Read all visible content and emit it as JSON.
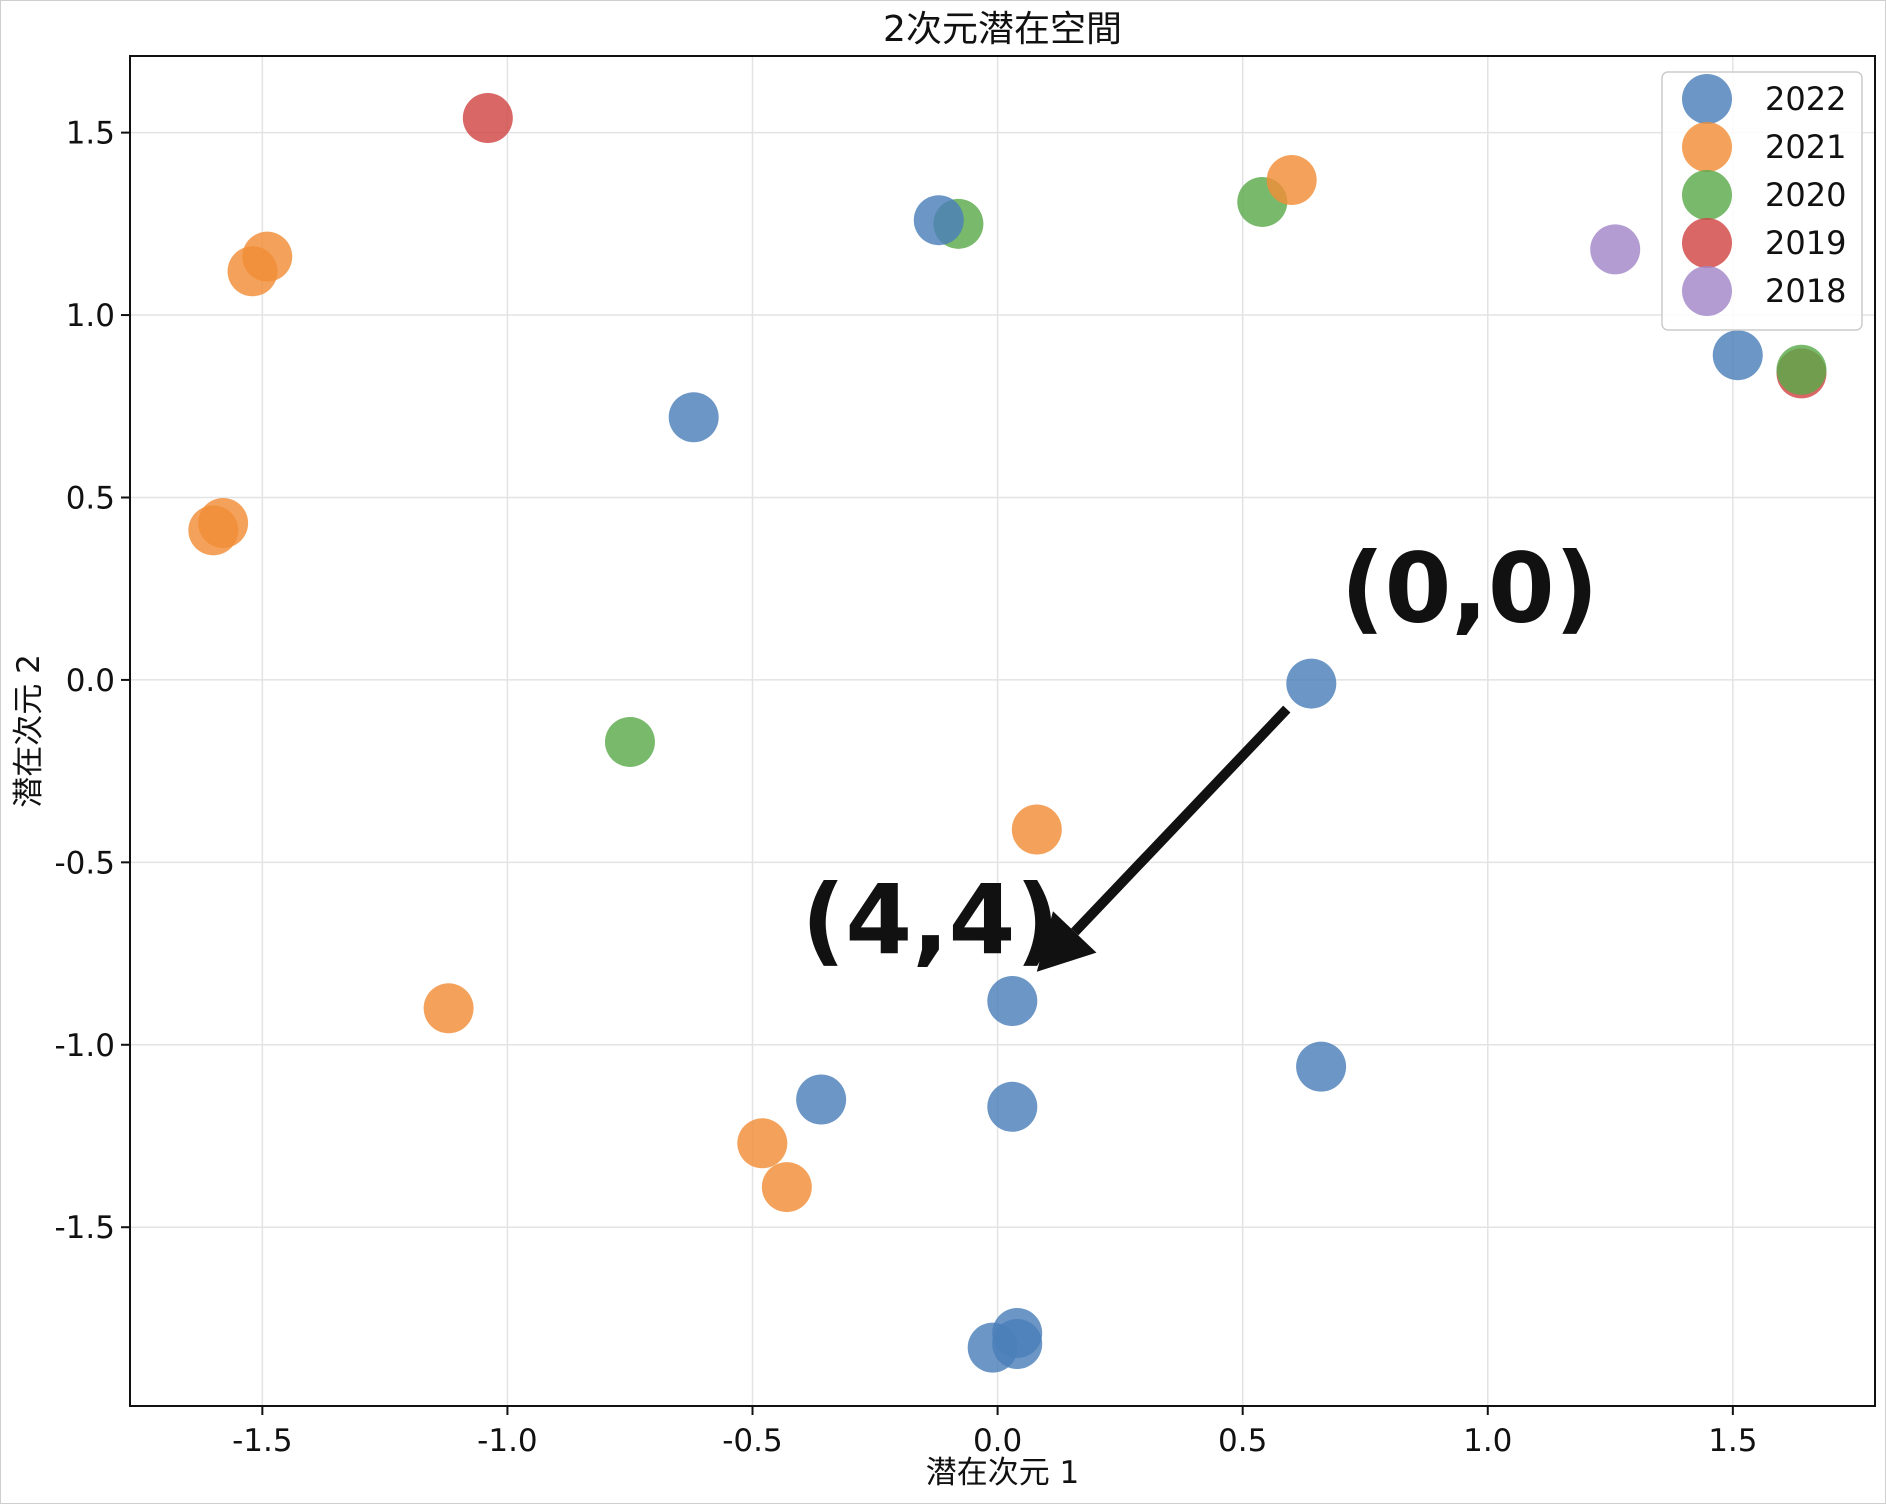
{
  "chart_data": {
    "type": "scatter",
    "title": "2次元潜在空間",
    "xlabel": "潜在次元 1",
    "ylabel": "潜在次元 2",
    "xlim": [
      -1.77,
      1.79
    ],
    "ylim": [
      -1.99,
      1.71
    ],
    "xticks": [
      -1.5,
      -1.0,
      -0.5,
      0.0,
      0.5,
      1.0,
      1.5
    ],
    "yticks": [
      -1.5,
      -1.0,
      -0.5,
      0.0,
      0.5,
      1.0,
      1.5
    ],
    "xtick_labels": [
      "-1.5",
      "-1.0",
      "-0.5",
      "0.0",
      "0.5",
      "1.0",
      "1.5"
    ],
    "ytick_labels": [
      "-1.5",
      "-1.0",
      "-0.5",
      "0.0",
      "0.5",
      "1.0",
      "1.5"
    ],
    "grid": true,
    "legend_position": "top-right",
    "series": [
      {
        "name": "2022",
        "color": "#4a7fb8",
        "points": [
          [
            -0.62,
            0.72
          ],
          [
            -0.12,
            1.26
          ],
          [
            1.51,
            0.89
          ],
          [
            0.64,
            -0.01
          ],
          [
            0.03,
            -0.88
          ],
          [
            0.66,
            -1.06
          ],
          [
            -0.36,
            -1.15
          ],
          [
            0.03,
            -1.17
          ],
          [
            0.04,
            -1.79
          ],
          [
            -0.01,
            -1.83
          ],
          [
            0.04,
            -1.82
          ]
        ]
      },
      {
        "name": "2021",
        "color": "#f28e37",
        "points": [
          [
            -1.49,
            1.16
          ],
          [
            -1.52,
            1.12
          ],
          [
            -1.58,
            0.43
          ],
          [
            -1.6,
            0.41
          ],
          [
            0.6,
            1.37
          ],
          [
            0.08,
            -0.41
          ],
          [
            -1.12,
            -0.9
          ],
          [
            -0.48,
            -1.27
          ],
          [
            -0.43,
            -1.39
          ]
        ]
      },
      {
        "name": "2020",
        "color": "#5aaa4a",
        "points": [
          [
            -0.08,
            1.25
          ],
          [
            0.54,
            1.31
          ],
          [
            -0.75,
            -0.17
          ],
          [
            1.64,
            0.85
          ]
        ]
      },
      {
        "name": "2019",
        "color": "#cf4544",
        "points": [
          [
            -1.04,
            1.54
          ],
          [
            1.64,
            0.84
          ]
        ]
      },
      {
        "name": "2018",
        "color": "#a286c8",
        "points": [
          [
            1.26,
            1.18
          ]
        ]
      }
    ],
    "annotations": [
      {
        "text": "(0,0)",
        "x": 0.7,
        "y": 0.16
      },
      {
        "text": "(4,4)",
        "x": -0.4,
        "y": -0.75
      }
    ],
    "arrow": {
      "from": [
        0.59,
        -0.08
      ],
      "to": [
        0.08,
        -0.8
      ]
    }
  }
}
